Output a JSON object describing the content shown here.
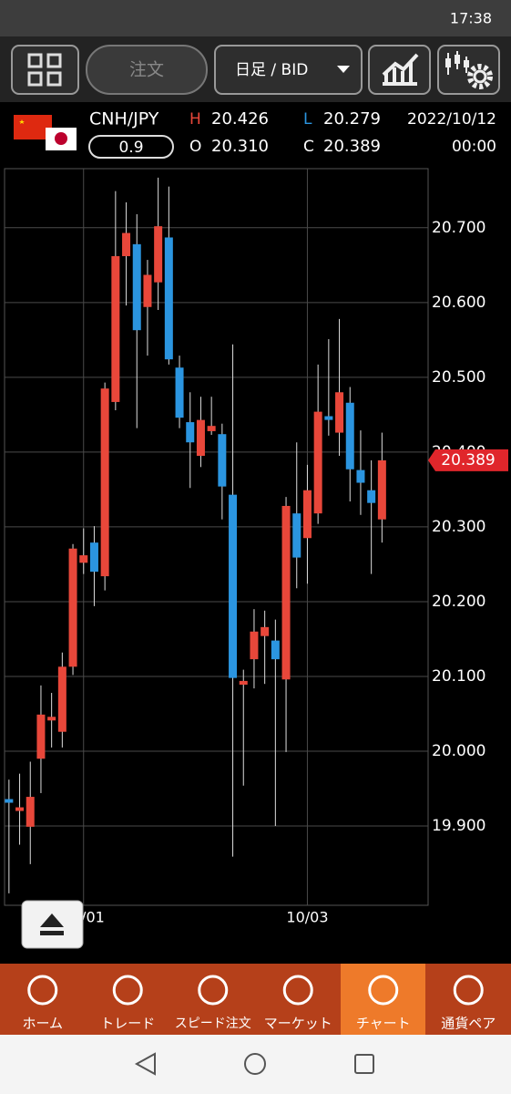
{
  "status_bar": {
    "time": "17:38"
  },
  "toolbar": {
    "order_button": "注文",
    "period_select": "日足 / BID"
  },
  "quote": {
    "symbol": "CNH/JPY",
    "spread": "0.9",
    "high_label": "H",
    "high": "20.426",
    "low_label": "L",
    "low": "20.279",
    "open_label": "O",
    "open": "20.310",
    "close_label": "C",
    "close": "20.389",
    "date": "2022/10/12",
    "time": "00:00"
  },
  "chart_data": {
    "type": "candlestick",
    "categories": [
      null,
      null,
      null,
      null,
      null,
      null,
      null,
      "10/01",
      null,
      null,
      null,
      null,
      null,
      null,
      null,
      null,
      null,
      null,
      null,
      null,
      null,
      null,
      null,
      null,
      null,
      null,
      null,
      null,
      "10/03",
      null,
      null,
      null,
      null,
      null,
      null,
      null
    ],
    "open": [
      19.936,
      19.922,
      19.899,
      19.99,
      20.045,
      20.026,
      20.113,
      20.252,
      20.279,
      20.234,
      20.467,
      20.662,
      20.678,
      20.594,
      20.627,
      20.687,
      20.513,
      20.44,
      20.395,
      20.428,
      20.424,
      20.343,
      20.089,
      20.123,
      20.154,
      20.148,
      20.096,
      20.318,
      20.285,
      20.318,
      20.448,
      20.426,
      20.466,
      20.376,
      20.349,
      20.31
    ],
    "high": [
      19.962,
      19.97,
      19.986,
      20.088,
      20.078,
      20.132,
      20.277,
      20.298,
      20.301,
      20.493,
      20.749,
      20.734,
      20.718,
      20.657,
      20.767,
      20.755,
      20.529,
      20.48,
      20.474,
      20.474,
      20.438,
      20.544,
      20.109,
      20.19,
      20.188,
      20.176,
      20.34,
      20.413,
      20.383,
      20.517,
      20.551,
      20.578,
      20.487,
      20.429,
      20.389,
      20.426
    ],
    "low": [
      19.81,
      19.875,
      19.849,
      19.944,
      20.005,
      20.005,
      20.102,
      20.237,
      20.194,
      20.215,
      20.456,
      20.596,
      20.432,
      20.529,
      20.59,
      20.517,
      20.432,
      20.352,
      20.38,
      20.423,
      20.31,
      19.859,
      19.954,
      20.084,
      20.09,
      19.9,
      19.999,
      20.218,
      20.224,
      20.304,
      20.422,
      20.395,
      20.334,
      20.316,
      20.237,
      20.279
    ],
    "close": [
      19.935,
      19.925,
      19.939,
      20.049,
      20.046,
      20.113,
      20.271,
      20.262,
      20.24,
      20.485,
      20.662,
      20.693,
      20.563,
      20.637,
      20.702,
      20.524,
      20.446,
      20.413,
      20.443,
      20.435,
      20.354,
      20.098,
      20.094,
      20.16,
      20.166,
      20.123,
      20.328,
      20.259,
      20.349,
      20.454,
      20.443,
      20.48,
      20.377,
      20.359,
      20.332,
      20.389
    ],
    "up_color": "#e8473a",
    "down_color": "#2b95e0",
    "ylim": [
      19.794,
      20.779
    ],
    "yticks": [
      {
        "value": 19.9,
        "label": "19.900"
      },
      {
        "value": 20.0,
        "label": "20.000"
      },
      {
        "value": 20.1,
        "label": "20.100"
      },
      {
        "value": 20.2,
        "label": "20.200"
      },
      {
        "value": 20.3,
        "label": "20.300"
      },
      {
        "value": 20.4,
        "label": "20.400"
      },
      {
        "value": 20.5,
        "label": "20.500"
      },
      {
        "value": 20.6,
        "label": "20.600"
      },
      {
        "value": 20.7,
        "label": "20.700"
      }
    ],
    "grid": true,
    "current_price": 20.389
  },
  "nav": [
    "ホーム",
    "トレード",
    "スピード注文",
    "マーケット",
    "チャート",
    "通貨ペア"
  ]
}
